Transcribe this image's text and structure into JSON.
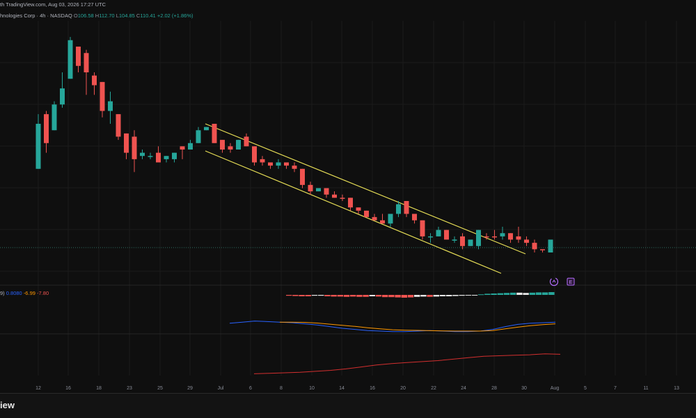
{
  "header": {
    "source_line": "th TradingView.com, Aug 03, 2026 17:27 UTC",
    "symbol_line": "hnologies Corp · 4h · NASDAQ",
    "ohlc": {
      "o_label": "O",
      "o": "106.58",
      "h_label": "H",
      "h": "112.70",
      "l_label": "L",
      "l": "104.85",
      "c_label": "C",
      "c": "110.41",
      "change": "+2.02 (+1.86%)"
    },
    "indicator": {
      "prefix": "9)",
      "v1": "0.8080",
      "v2": "-6.99",
      "v3": "-7.80"
    }
  },
  "footer": {
    "brand": "iew"
  },
  "icons": [
    "replay-icon",
    "earnings-icon"
  ],
  "colors": {
    "background": "#0f0f0f",
    "up": "#26a69a",
    "down": "#ef5350",
    "channel": "#e8df56",
    "macd_line": "#2962ff",
    "signal_line": "#ff9800",
    "lower_line": "#d32f2f"
  },
  "chart_data": {
    "type": "candlestick",
    "x_tick_labels": [
      "12",
      "16",
      "18",
      "23",
      "25",
      "29",
      "Jul",
      "6",
      "8",
      "10",
      "14",
      "16",
      "20",
      "22",
      "24",
      "28",
      "30",
      "Aug",
      "5",
      "7",
      "11",
      "13"
    ],
    "candles": [
      {
        "o": 73,
        "h": 76,
        "l": 59,
        "c": 59,
        "dir": "up"
      },
      {
        "o": 76,
        "h": 77,
        "l": 64,
        "c": 67,
        "dir": "down"
      },
      {
        "o": 71,
        "h": 80,
        "l": 71,
        "c": 79,
        "dir": "up"
      },
      {
        "o": 79,
        "h": 89,
        "l": 78,
        "c": 84,
        "dir": "up"
      },
      {
        "o": 87,
        "h": 100,
        "l": 87,
        "c": 99,
        "dir": "up"
      },
      {
        "o": 97,
        "h": 97,
        "l": 89,
        "c": 91,
        "dir": "down"
      },
      {
        "o": 95,
        "h": 96,
        "l": 82,
        "c": 89,
        "dir": "down"
      },
      {
        "o": 88,
        "h": 89,
        "l": 82,
        "c": 85,
        "dir": "down"
      },
      {
        "o": 86,
        "h": 86,
        "l": 75,
        "c": 77,
        "dir": "down"
      },
      {
        "o": 80,
        "h": 83,
        "l": 73,
        "c": 77,
        "dir": "up"
      },
      {
        "o": 76,
        "h": 76,
        "l": 68,
        "c": 69,
        "dir": "down"
      },
      {
        "o": 70,
        "h": 70,
        "l": 62,
        "c": 64,
        "dir": "down"
      },
      {
        "o": 69,
        "h": 71,
        "l": 58,
        "c": 62,
        "dir": "down"
      },
      {
        "o": 63,
        "h": 65,
        "l": 62,
        "c": 64,
        "dir": "up"
      },
      {
        "o": 63,
        "h": 64,
        "l": 62,
        "c": 63,
        "dir": "up"
      },
      {
        "o": 64,
        "h": 66,
        "l": 61,
        "c": 61,
        "dir": "down"
      },
      {
        "o": 62,
        "h": 63,
        "l": 61,
        "c": 63,
        "dir": "up"
      },
      {
        "o": 62,
        "h": 64,
        "l": 61,
        "c": 64,
        "dir": "up"
      },
      {
        "o": 66,
        "h": 66,
        "l": 62,
        "c": 65,
        "dir": "down"
      },
      {
        "o": 65,
        "h": 68,
        "l": 65,
        "c": 67,
        "dir": "up"
      },
      {
        "o": 67,
        "h": 72,
        "l": 67,
        "c": 71,
        "dir": "up"
      },
      {
        "o": 71,
        "h": 72,
        "l": 71,
        "c": 72,
        "dir": "up"
      },
      {
        "o": 73,
        "h": 73,
        "l": 67,
        "c": 67,
        "dir": "down"
      },
      {
        "o": 68,
        "h": 68,
        "l": 64,
        "c": 65,
        "dir": "down"
      },
      {
        "o": 66,
        "h": 67,
        "l": 64,
        "c": 65,
        "dir": "down"
      },
      {
        "o": 65,
        "h": 68,
        "l": 65,
        "c": 68,
        "dir": "up"
      },
      {
        "o": 69,
        "h": 70,
        "l": 66,
        "c": 66,
        "dir": "down"
      },
      {
        "o": 66,
        "h": 66,
        "l": 60,
        "c": 61,
        "dir": "down"
      },
      {
        "o": 62,
        "h": 63,
        "l": 60,
        "c": 61,
        "dir": "down"
      },
      {
        "o": 61,
        "h": 61,
        "l": 59,
        "c": 60,
        "dir": "down"
      },
      {
        "o": 60,
        "h": 62,
        "l": 59,
        "c": 61,
        "dir": "up"
      },
      {
        "o": 61,
        "h": 61,
        "l": 59,
        "c": 60,
        "dir": "down"
      },
      {
        "o": 60,
        "h": 61,
        "l": 58,
        "c": 59,
        "dir": "down"
      },
      {
        "o": 59,
        "h": 59,
        "l": 53,
        "c": 54,
        "dir": "down"
      },
      {
        "o": 54,
        "h": 55,
        "l": 51,
        "c": 52,
        "dir": "down"
      },
      {
        "o": 52,
        "h": 53,
        "l": 52,
        "c": 53,
        "dir": "up"
      },
      {
        "o": 53,
        "h": 53,
        "l": 50,
        "c": 51,
        "dir": "down"
      },
      {
        "o": 51,
        "h": 52,
        "l": 50,
        "c": 50,
        "dir": "down"
      },
      {
        "o": 50,
        "h": 51,
        "l": 49,
        "c": 50,
        "dir": "down"
      },
      {
        "o": 50,
        "h": 50,
        "l": 46,
        "c": 47,
        "dir": "down"
      },
      {
        "o": 47,
        "h": 47,
        "l": 45,
        "c": 46,
        "dir": "down"
      },
      {
        "o": 46,
        "h": 46,
        "l": 44,
        "c": 44,
        "dir": "down"
      },
      {
        "o": 44,
        "h": 45,
        "l": 43,
        "c": 43,
        "dir": "down"
      },
      {
        "o": 43,
        "h": 45,
        "l": 42,
        "c": 42,
        "dir": "down"
      },
      {
        "o": 42,
        "h": 45,
        "l": 41,
        "c": 45,
        "dir": "up"
      },
      {
        "o": 45,
        "h": 49,
        "l": 44,
        "c": 48,
        "dir": "up"
      },
      {
        "o": 49,
        "h": 49,
        "l": 44,
        "c": 45,
        "dir": "down"
      },
      {
        "o": 45,
        "h": 45,
        "l": 42,
        "c": 43,
        "dir": "down"
      },
      {
        "o": 43,
        "h": 43,
        "l": 37,
        "c": 38,
        "dir": "down"
      },
      {
        "o": 38,
        "h": 39,
        "l": 36,
        "c": 38,
        "dir": "up"
      },
      {
        "o": 38,
        "h": 41,
        "l": 38,
        "c": 40,
        "dir": "up"
      },
      {
        "o": 40,
        "h": 40,
        "l": 37,
        "c": 37,
        "dir": "down"
      },
      {
        "o": 37,
        "h": 38,
        "l": 36,
        "c": 37,
        "dir": "up"
      },
      {
        "o": 38,
        "h": 39,
        "l": 34,
        "c": 35,
        "dir": "down"
      },
      {
        "o": 35,
        "h": 37,
        "l": 35,
        "c": 37,
        "dir": "up"
      },
      {
        "o": 35,
        "h": 40,
        "l": 34,
        "c": 40,
        "dir": "up"
      },
      {
        "o": 38,
        "h": 39,
        "l": 37,
        "c": 38,
        "dir": "down"
      },
      {
        "o": 38,
        "h": 40,
        "l": 37,
        "c": 38,
        "dir": "down"
      },
      {
        "o": 39,
        "h": 41,
        "l": 37,
        "c": 38,
        "dir": "up"
      },
      {
        "o": 39,
        "h": 39,
        "l": 36,
        "c": 37,
        "dir": "down"
      },
      {
        "o": 38,
        "h": 41,
        "l": 36,
        "c": 37,
        "dir": "down"
      },
      {
        "o": 37,
        "h": 38,
        "l": 35,
        "c": 36,
        "dir": "down"
      },
      {
        "o": 36,
        "h": 37,
        "l": 33,
        "c": 34,
        "dir": "down"
      },
      {
        "o": 34,
        "h": 34,
        "l": 33,
        "c": 34,
        "dir": "down"
      },
      {
        "o": 33,
        "h": 37,
        "l": 33,
        "c": 37,
        "dir": "up"
      }
    ],
    "histogram_bins": [
      [
        -0.3,
        "down"
      ],
      [
        -0.4,
        "down"
      ],
      [
        -0.5,
        "down"
      ],
      [
        -0.5,
        "down"
      ],
      [
        -0.3,
        "light"
      ],
      [
        -0.3,
        "light"
      ],
      [
        -0.5,
        "down"
      ],
      [
        -0.6,
        "down"
      ],
      [
        -0.6,
        "down"
      ],
      [
        -0.7,
        "down"
      ],
      [
        -0.6,
        "down"
      ],
      [
        -0.7,
        "down"
      ],
      [
        -0.7,
        "down"
      ],
      [
        -0.5,
        "light"
      ],
      [
        -0.6,
        "down"
      ],
      [
        -0.8,
        "down"
      ],
      [
        -0.8,
        "down"
      ],
      [
        -0.9,
        "down"
      ],
      [
        -1.0,
        "down"
      ],
      [
        -0.9,
        "down"
      ],
      [
        -0.7,
        "light"
      ],
      [
        -0.6,
        "light"
      ],
      [
        -0.7,
        "down"
      ],
      [
        -0.6,
        "light"
      ],
      [
        -0.5,
        "light"
      ],
      [
        -0.5,
        "light"
      ],
      [
        -0.4,
        "light"
      ],
      [
        -0.3,
        "light"
      ],
      [
        -0.2,
        "light"
      ],
      [
        -0.1,
        "light"
      ],
      [
        0.2,
        "up"
      ],
      [
        0.4,
        "up"
      ],
      [
        0.5,
        "up"
      ],
      [
        0.6,
        "up"
      ],
      [
        0.7,
        "up"
      ],
      [
        0.8,
        "up"
      ],
      [
        0.8,
        "light"
      ],
      [
        0.7,
        "light"
      ],
      [
        0.8,
        "up"
      ],
      [
        0.9,
        "up"
      ],
      [
        0.9,
        "up"
      ],
      [
        1.0,
        "up"
      ]
    ],
    "macd_line": [
      [
        0,
        0.2
      ],
      [
        1,
        0.3
      ],
      [
        2,
        0.4
      ],
      [
        3,
        0.35
      ],
      [
        4,
        0.3
      ],
      [
        5,
        0.25
      ],
      [
        6,
        0.15
      ],
      [
        7,
        0.05
      ],
      [
        8,
        -0.1
      ],
      [
        9,
        -0.25
      ],
      [
        10,
        -0.35
      ],
      [
        11,
        -0.45
      ],
      [
        12,
        -0.5
      ],
      [
        13,
        -0.55
      ],
      [
        14,
        -0.55
      ],
      [
        15,
        -0.5
      ],
      [
        16,
        -0.45
      ],
      [
        17,
        -0.5
      ],
      [
        18,
        -0.55
      ],
      [
        19,
        -0.55
      ],
      [
        20,
        -0.5
      ],
      [
        21,
        -0.35
      ],
      [
        22,
        -0.1
      ],
      [
        23,
        0.1
      ],
      [
        24,
        0.2
      ],
      [
        25,
        0.25
      ],
      [
        26,
        0.3
      ]
    ],
    "signal_line": [
      [
        4,
        0.3
      ],
      [
        5,
        0.3
      ],
      [
        6,
        0.28
      ],
      [
        7,
        0.22
      ],
      [
        8,
        0.12
      ],
      [
        9,
        0.02
      ],
      [
        10,
        -0.08
      ],
      [
        11,
        -0.2
      ],
      [
        12,
        -0.3
      ],
      [
        13,
        -0.38
      ],
      [
        14,
        -0.42
      ],
      [
        15,
        -0.44
      ],
      [
        16,
        -0.46
      ],
      [
        17,
        -0.48
      ],
      [
        18,
        -0.5
      ],
      [
        19,
        -0.5
      ],
      [
        20,
        -0.5
      ],
      [
        21,
        -0.45
      ],
      [
        22,
        -0.3
      ],
      [
        23,
        -0.15
      ],
      [
        24,
        -0.02
      ],
      [
        25,
        0.08
      ],
      [
        26,
        0.15
      ]
    ],
    "lower_line": [
      [
        0,
        -1.6
      ],
      [
        1,
        -1.55
      ],
      [
        2,
        -1.5
      ],
      [
        3,
        -1.45
      ],
      [
        4,
        -1.35
      ],
      [
        5,
        -1.25
      ],
      [
        6,
        -1.1
      ],
      [
        7,
        -0.9
      ],
      [
        8,
        -0.7
      ],
      [
        9,
        -0.55
      ],
      [
        10,
        -0.45
      ],
      [
        11,
        -0.35
      ],
      [
        12,
        -0.25
      ],
      [
        13,
        -0.1
      ],
      [
        14,
        0.05
      ],
      [
        15,
        0.2
      ],
      [
        16,
        0.25
      ],
      [
        17,
        0.3
      ],
      [
        18,
        0.35
      ],
      [
        19,
        0.45
      ],
      [
        20,
        0.4
      ]
    ]
  }
}
